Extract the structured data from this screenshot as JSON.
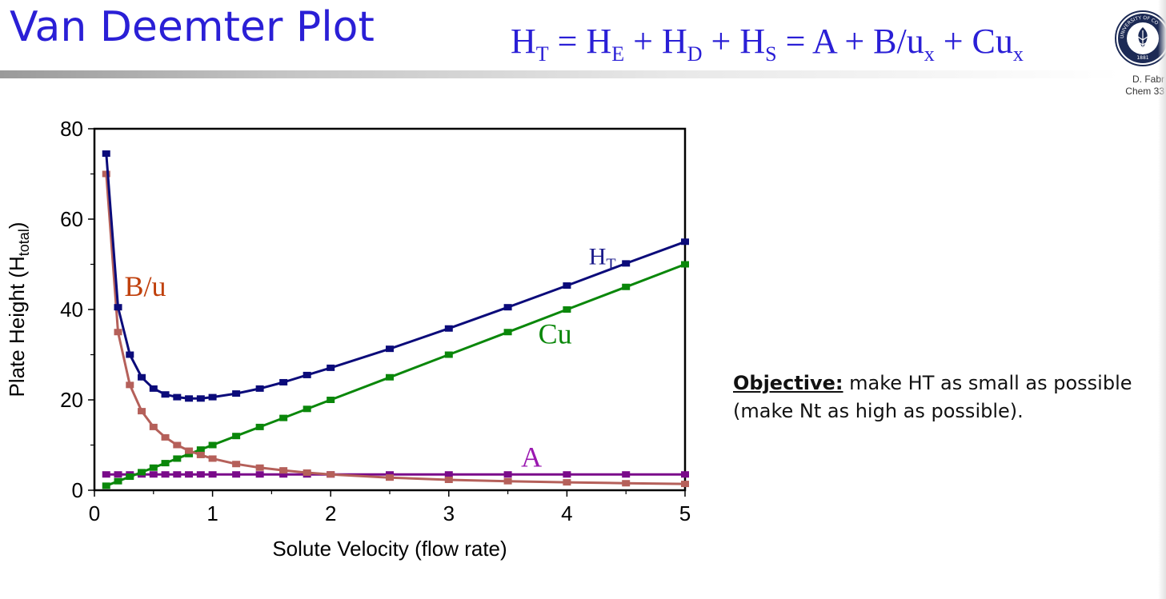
{
  "slide": {
    "title": "Van Deemter Plot",
    "author_line1": "D. Fabr",
    "author_line2": "Chem 33",
    "seal_text": "UNIVERSITY OF CO",
    "seal_year": "1881",
    "seal_icon": "university-seal-icon"
  },
  "equation": {
    "parts": [
      {
        "text": "H"
      },
      {
        "sub": "T"
      },
      {
        "text": " = H"
      },
      {
        "sub": "E"
      },
      {
        "text": " + H"
      },
      {
        "sub": "D"
      },
      {
        "text": " + H"
      },
      {
        "sub": "S"
      },
      {
        "text": " = A + B/u"
      },
      {
        "sub": "x"
      },
      {
        "text": " + Cu"
      },
      {
        "sub": "x"
      }
    ]
  },
  "objective": {
    "label": "Objective:",
    "text": " make HT as small as possible (make Nt as high as possible)."
  },
  "chart_data": {
    "type": "line",
    "xlabel": "Solute Velocity (flow rate)",
    "ylabel_main": "Plate Height (H",
    "ylabel_sub": "total",
    "ylabel_end": ")",
    "xlim": [
      0,
      5
    ],
    "ylim": [
      0,
      80
    ],
    "xticks": [
      0,
      1,
      2,
      3,
      4,
      5
    ],
    "yticks": [
      0,
      20,
      40,
      60,
      80
    ],
    "grid": false,
    "legend": "inline labels",
    "series": [
      {
        "name": "H_T",
        "label_main": "H",
        "label_sub": "T",
        "label_at": [
          4.3,
          50
        ],
        "color": "#0b0b7a",
        "label_color": "#1a1a8a",
        "x": [
          0.1,
          0.2,
          0.3,
          0.4,
          0.5,
          0.6,
          0.7,
          0.8,
          0.9,
          1.0,
          1.2,
          1.4,
          1.6,
          1.8,
          2.0,
          2.5,
          3.0,
          3.5,
          4.0,
          4.5,
          5.0
        ],
        "y": [
          74.5,
          40.5,
          30,
          25,
          22.5,
          21.2,
          20.6,
          20.3,
          20.3,
          20.6,
          21.4,
          22.5,
          23.9,
          25.5,
          27.1,
          31.3,
          35.8,
          40.5,
          45.3,
          50.2,
          55
        ]
      },
      {
        "name": "B/u",
        "label_main": "B/u",
        "label_at": [
          0.43,
          43
        ],
        "color": "#b5605a",
        "label_color": "#c0400c",
        "x": [
          0.1,
          0.2,
          0.3,
          0.4,
          0.5,
          0.6,
          0.7,
          0.8,
          0.9,
          1.0,
          1.2,
          1.4,
          1.6,
          1.8,
          2.0,
          2.5,
          3.0,
          3.5,
          4.0,
          4.5,
          5.0
        ],
        "y": [
          70,
          35,
          23.3,
          17.5,
          14,
          11.7,
          10,
          8.75,
          7.8,
          7,
          5.8,
          5,
          4.4,
          3.9,
          3.5,
          2.8,
          2.3,
          2,
          1.75,
          1.55,
          1.4
        ]
      },
      {
        "name": "Cu",
        "label_main": "Cu",
        "label_at": [
          3.9,
          32.5
        ],
        "color": "#0a870a",
        "label_color": "#0a870a",
        "x": [
          0.1,
          0.2,
          0.3,
          0.4,
          0.5,
          0.6,
          0.7,
          0.8,
          0.9,
          1.0,
          1.2,
          1.4,
          1.6,
          1.8,
          2.0,
          2.5,
          3.0,
          3.5,
          4.0,
          4.5,
          5.0
        ],
        "y": [
          1,
          2,
          3,
          4,
          5,
          6,
          7,
          8,
          9,
          10,
          12,
          14,
          16,
          18,
          20,
          25,
          30,
          35,
          40,
          45,
          50
        ]
      },
      {
        "name": "A",
        "label_main": "A",
        "label_at": [
          3.7,
          5.2
        ],
        "color": "#7a0a8a",
        "label_color": "#9a18b0",
        "x": [
          0.1,
          0.2,
          0.3,
          0.4,
          0.5,
          0.6,
          0.7,
          0.8,
          0.9,
          1.0,
          1.2,
          1.4,
          1.6,
          1.8,
          2.0,
          2.5,
          3.0,
          3.5,
          4.0,
          4.5,
          5.0
        ],
        "y": [
          3.5,
          3.5,
          3.5,
          3.5,
          3.5,
          3.5,
          3.5,
          3.5,
          3.5,
          3.5,
          3.5,
          3.5,
          3.5,
          3.5,
          3.5,
          3.5,
          3.5,
          3.5,
          3.5,
          3.5,
          3.5
        ]
      }
    ]
  }
}
